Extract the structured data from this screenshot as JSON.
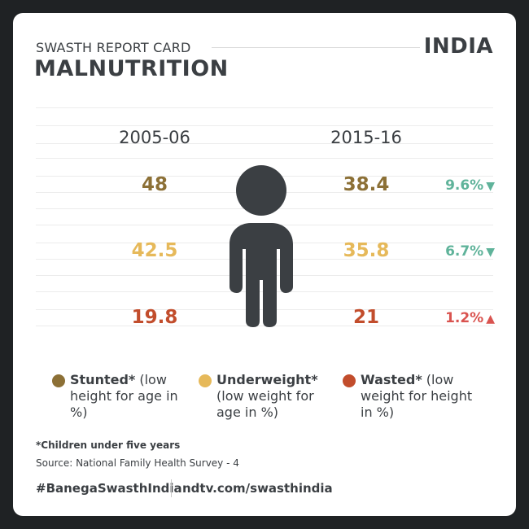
{
  "header": {
    "subtitle": "SWASTH REPORT CARD",
    "title": "MALNUTRITION",
    "country": "INDIA"
  },
  "colors": {
    "stunted": "#8c7036",
    "underweight": "#e6b95a",
    "wasted": "#c24d2c",
    "decrease": "#5fb39a",
    "increase": "#d9534f",
    "figure": "#3b3f43"
  },
  "chart_data": {
    "type": "table",
    "columns": [
      "2005-06",
      "2015-16"
    ],
    "rows": [
      {
        "key": "stunted",
        "name": "Stunted",
        "values": [
          48,
          38.4
        ],
        "value_labels": [
          "48",
          "38.4"
        ],
        "change": "9.6%",
        "direction": "down",
        "arrow": "▼"
      },
      {
        "key": "underweight",
        "name": "Underweight",
        "values": [
          42.5,
          35.8
        ],
        "value_labels": [
          "42.5",
          "35.8"
        ],
        "change": "6.7%",
        "direction": "down",
        "arrow": "▼"
      },
      {
        "key": "wasted",
        "name": "Wasted",
        "values": [
          19.8,
          21
        ],
        "value_labels": [
          "19.8",
          "21"
        ],
        "change": "1.2%",
        "direction": "up",
        "arrow": "▲"
      }
    ]
  },
  "legend": [
    {
      "key": "stunted",
      "name": "Stunted*",
      "desc": " (low height for age in %)"
    },
    {
      "key": "underweight",
      "name": "Underweight*",
      "desc": " (low weight for age in %)"
    },
    {
      "key": "wasted",
      "name": "Wasted*",
      "desc": " (low weight for height in %)"
    }
  ],
  "footnote": "*Children under five years",
  "source": "Source: National Family Health Survey - 4",
  "footer": {
    "hashtag": "#BanegaSwasthIndia",
    "url": "ndtv.com/swasthindia"
  }
}
